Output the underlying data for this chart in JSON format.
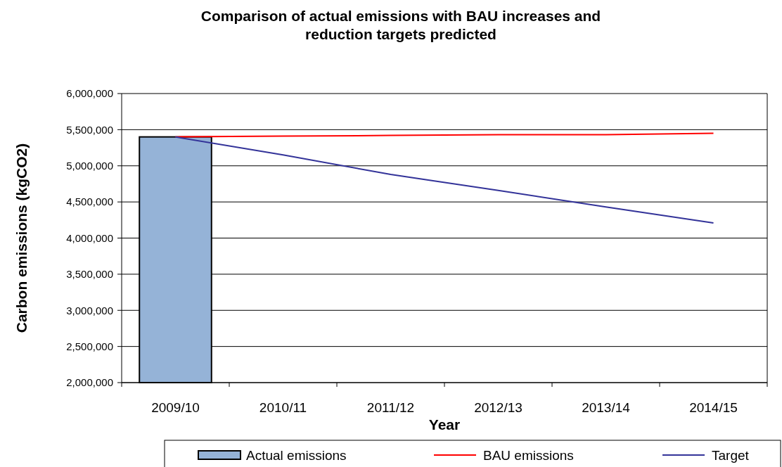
{
  "chart_data": {
    "type": "bar",
    "title": "Comparison of actual emissions with BAU increases and reduction targets predicted",
    "xlabel": "Year",
    "ylabel": "Carbon emissions (kgCO2)",
    "categories": [
      "2009/10",
      "2010/11",
      "2011/12",
      "2012/13",
      "2013/14",
      "2014/15"
    ],
    "series": [
      {
        "name": "Actual emissions",
        "color": "#95b3d7",
        "values": [
          5400000,
          null,
          null,
          null,
          null,
          null
        ]
      },
      {
        "name": "BAU emissions",
        "type": "line",
        "color": "#ff0000",
        "values": [
          5400000,
          5410000,
          5420000,
          5430000,
          5430000,
          5450000
        ]
      },
      {
        "name": "Target",
        "type": "line",
        "color": "#333399",
        "values": [
          5400000,
          5150000,
          4880000,
          4660000,
          4430000,
          4210000
        ]
      }
    ],
    "ylim": [
      2000000,
      6000000
    ],
    "yticks": [
      {
        "value": 2000000,
        "label": "2,000,000"
      },
      {
        "value": 2500000,
        "label": "2,500,000"
      },
      {
        "value": 3000000,
        "label": "3,000,000"
      },
      {
        "value": 3500000,
        "label": "3,500,000"
      },
      {
        "value": 4000000,
        "label": "4,000,000"
      },
      {
        "value": 4500000,
        "label": "4,500,000"
      },
      {
        "value": 5000000,
        "label": "5,000,000"
      },
      {
        "value": 5500000,
        "label": "5,500,000"
      },
      {
        "value": 6000000,
        "label": "6,000,000"
      }
    ],
    "grid": "y",
    "legend": "bottom",
    "marker": "none",
    "line_style": "solid"
  }
}
